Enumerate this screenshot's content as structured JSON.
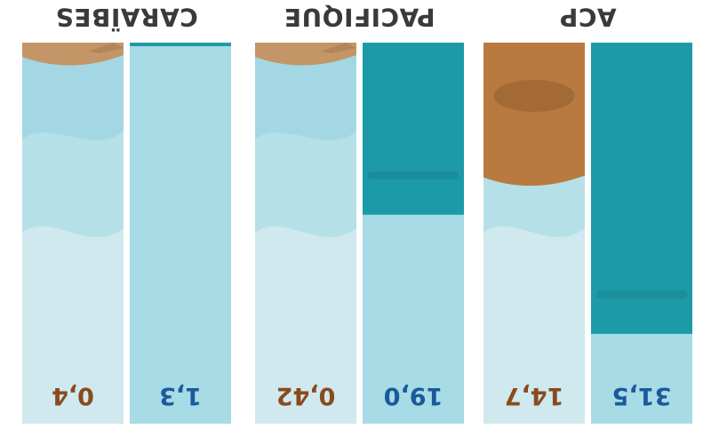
{
  "colors": {
    "water_dark": "#1d9aa8",
    "water_light": "#a7dbe5",
    "water_pale": "#cfe9ee",
    "sand": "#c39567",
    "sand_dark": "#b87a3e",
    "value_blue": "#1a5a9c",
    "value_brown": "#8a4a1c",
    "title": "#3a3a3a"
  },
  "chart_data": {
    "type": "bar",
    "categories": [
      "ACP",
      "PACIFIQUE",
      "CARAÏBES"
    ],
    "series": [
      {
        "values": [
          31.5,
          19.0,
          1.3
        ]
      },
      {
        "values": [
          14.7,
          0.42,
          0.4
        ]
      }
    ],
    "labels": {
      "ACP": [
        "31,5",
        "14,7"
      ],
      "PACIFIQUE": [
        "19,0",
        "0,42"
      ],
      "CARAÏBES": [
        "1,3",
        "0,4"
      ]
    }
  }
}
